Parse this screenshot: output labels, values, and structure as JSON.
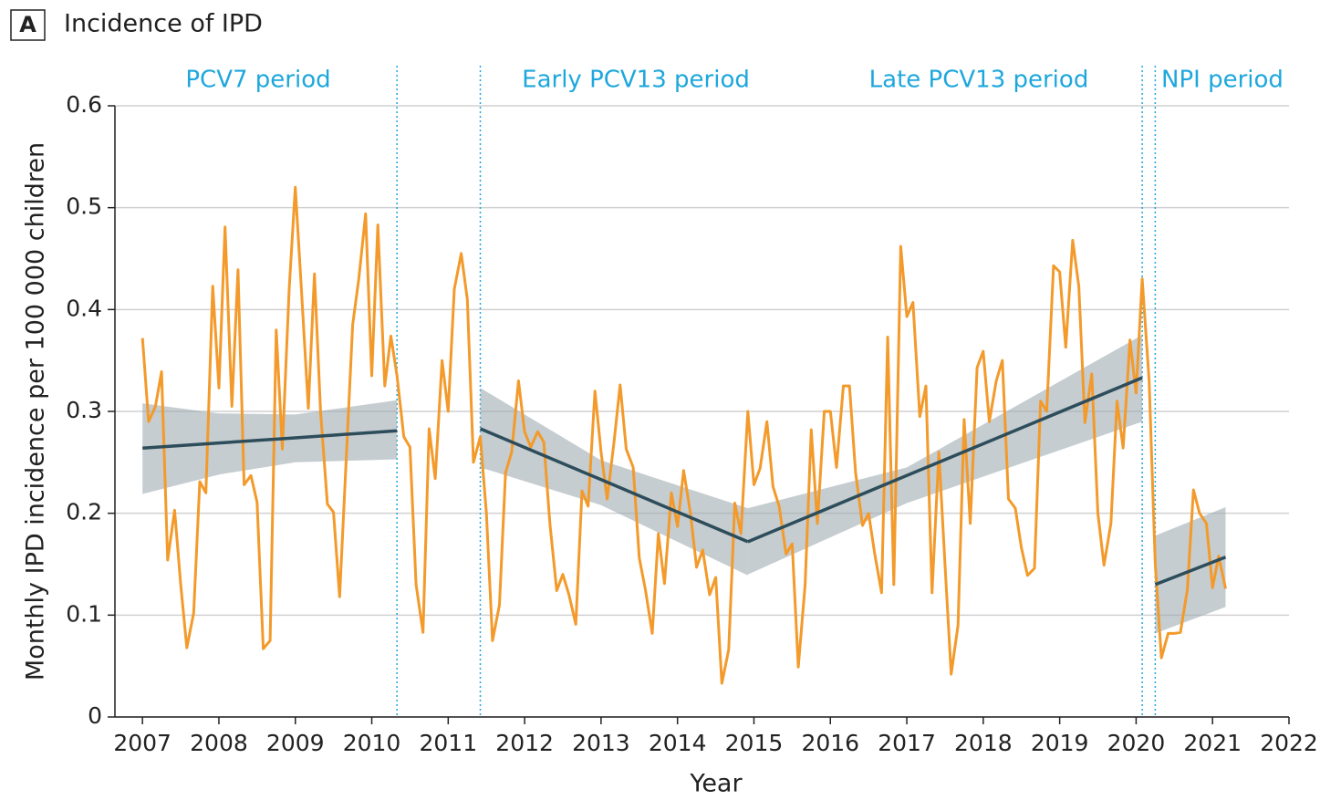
{
  "chart_data": {
    "type": "line",
    "panel": "A",
    "title": "Incidence of IPD",
    "xlabel": "Year",
    "ylabel": "Monthly IPD incidence per 100 000 children",
    "color": "#f39a2b",
    "trend_color": "#2e4d5b",
    "band_color": "#9eacb2",
    "grid": true,
    "xlim": [
      2006.64,
      2022
    ],
    "ylim": [
      0,
      0.6
    ],
    "xticks": [
      2007,
      2008,
      2009,
      2010,
      2011,
      2012,
      2013,
      2014,
      2015,
      2016,
      2017,
      2018,
      2019,
      2020,
      2021,
      2022
    ],
    "yticks": [
      0,
      0.1,
      0.2,
      0.3,
      0.4,
      0.5,
      0.6
    ],
    "periods": [
      "PCV7 period",
      "Early PCV13 period",
      "Late PCV13 period",
      "NPI period"
    ],
    "boundaries": [
      2010.33,
      2011.42,
      2020.08,
      2020.25
    ],
    "x": [
      2007,
      2007.08,
      2007.17,
      2007.25,
      2007.33,
      2007.42,
      2007.5,
      2007.58,
      2007.67,
      2007.75,
      2007.83,
      2007.92,
      2008,
      2008.08,
      2008.17,
      2008.25,
      2008.33,
      2008.42,
      2008.5,
      2008.58,
      2008.67,
      2008.75,
      2008.83,
      2008.92,
      2009,
      2009.08,
      2009.17,
      2009.25,
      2009.33,
      2009.42,
      2009.5,
      2009.58,
      2009.67,
      2009.75,
      2009.83,
      2009.92,
      2010,
      2010.08,
      2010.17,
      2010.25,
      2010.33,
      2010.42,
      2010.5,
      2010.58,
      2010.67,
      2010.75,
      2010.83,
      2010.92,
      2011,
      2011.08,
      2011.17,
      2011.25,
      2011.33,
      2011.42,
      2011.5,
      2011.58,
      2011.67,
      2011.75,
      2011.83,
      2011.92,
      2012,
      2012.08,
      2012.17,
      2012.25,
      2012.33,
      2012.42,
      2012.5,
      2012.58,
      2012.67,
      2012.75,
      2012.83,
      2012.92,
      2013,
      2013.08,
      2013.17,
      2013.25,
      2013.33,
      2013.42,
      2013.5,
      2013.58,
      2013.67,
      2013.75,
      2013.83,
      2013.92,
      2014,
      2014.08,
      2014.17,
      2014.25,
      2014.33,
      2014.42,
      2014.5,
      2014.58,
      2014.67,
      2014.75,
      2014.83,
      2014.92,
      2015,
      2015.08,
      2015.17,
      2015.25,
      2015.33,
      2015.42,
      2015.5,
      2015.58,
      2015.67,
      2015.75,
      2015.83,
      2015.92,
      2016,
      2016.08,
      2016.17,
      2016.25,
      2016.33,
      2016.42,
      2016.5,
      2016.58,
      2016.67,
      2016.75,
      2016.83,
      2016.92,
      2017,
      2017.08,
      2017.17,
      2017.25,
      2017.33,
      2017.42,
      2017.5,
      2017.58,
      2017.67,
      2017.75,
      2017.83,
      2017.92,
      2018,
      2018.08,
      2018.17,
      2018.25,
      2018.33,
      2018.42,
      2018.5,
      2018.58,
      2018.67,
      2018.75,
      2018.83,
      2018.92,
      2019,
      2019.08,
      2019.17,
      2019.25,
      2019.33,
      2019.42,
      2019.5,
      2019.58,
      2019.67,
      2019.75,
      2019.83,
      2019.92,
      2020,
      2020.08,
      2020.17,
      2020.25,
      2020.33,
      2020.42,
      2020.5,
      2020.58,
      2020.67,
      2020.75,
      2020.83,
      2020.92,
      2021,
      2021.08,
      2021.17
    ],
    "values": [
      0.372,
      0.29,
      0.305,
      0.339,
      0.154,
      0.203,
      0.13,
      0.068,
      0.102,
      0.231,
      0.22,
      0.423,
      0.323,
      0.481,
      0.305,
      0.439,
      0.228,
      0.237,
      0.211,
      0.067,
      0.075,
      0.38,
      0.263,
      0.42,
      0.52,
      0.42,
      0.303,
      0.435,
      0.3,
      0.209,
      0.201,
      0.118,
      0.26,
      0.385,
      0.43,
      0.494,
      0.335,
      0.483,
      0.325,
      0.374,
      0.335,
      0.275,
      0.265,
      0.13,
      0.083,
      0.283,
      0.234,
      0.35,
      0.3,
      0.42,
      0.455,
      0.41,
      0.25,
      0.275,
      0.2,
      0.075,
      0.11,
      0.24,
      0.26,
      0.33,
      0.28,
      0.265,
      0.28,
      0.27,
      0.19,
      0.124,
      0.14,
      0.12,
      0.091,
      0.222,
      0.207,
      0.32,
      0.26,
      0.214,
      0.27,
      0.326,
      0.263,
      0.245,
      0.156,
      0.125,
      0.082,
      0.18,
      0.131,
      0.22,
      0.187,
      0.242,
      0.2,
      0.147,
      0.164,
      0.12,
      0.137,
      0.033,
      0.066,
      0.21,
      0.18,
      0.3,
      0.228,
      0.244,
      0.29,
      0.226,
      0.207,
      0.16,
      0.17,
      0.049,
      0.13,
      0.282,
      0.19,
      0.3,
      0.3,
      0.245,
      0.325,
      0.325,
      0.24,
      0.188,
      0.2,
      0.16,
      0.122,
      0.373,
      0.13,
      0.462,
      0.393,
      0.407,
      0.295,
      0.325,
      0.122,
      0.26,
      0.15,
      0.042,
      0.09,
      0.292,
      0.19,
      0.343,
      0.359,
      0.29,
      0.33,
      0.35,
      0.214,
      0.205,
      0.166,
      0.139,
      0.146,
      0.31,
      0.3,
      0.443,
      0.437,
      0.363,
      0.468,
      0.423,
      0.289,
      0.337,
      0.2,
      0.149,
      0.19,
      0.31,
      0.264,
      0.37,
      0.318,
      0.43,
      0.33,
      0.15,
      0.058,
      0.082,
      0.082,
      0.083,
      0.125,
      0.223,
      0.2,
      0.19,
      0.127,
      0.158,
      0.126
    ],
    "trends": [
      {
        "x": [
          2007,
          2008,
          2009,
          2010.33
        ],
        "fit": [
          0.264,
          0.269,
          0.274,
          0.281
        ],
        "lower": [
          0.219,
          0.238,
          0.25,
          0.253
        ],
        "upper": [
          0.308,
          0.298,
          0.297,
          0.311
        ]
      },
      {
        "x": [
          2011.42,
          2013,
          2014.92
        ],
        "fit": [
          0.283,
          0.233,
          0.172
        ],
        "lower": [
          0.245,
          0.208,
          0.139
        ],
        "upper": [
          0.323,
          0.252,
          0.205
        ]
      },
      {
        "x": [
          2014.92,
          2017,
          2020.08
        ],
        "fit": [
          0.172,
          0.237,
          0.333
        ],
        "lower": [
          0.14,
          0.21,
          0.29
        ],
        "upper": [
          0.205,
          0.245,
          0.375
        ]
      },
      {
        "x": [
          2020.25,
          2021.17
        ],
        "fit": [
          0.13,
          0.157
        ],
        "lower": [
          0.082,
          0.108
        ],
        "upper": [
          0.178,
          0.206
        ]
      }
    ]
  }
}
